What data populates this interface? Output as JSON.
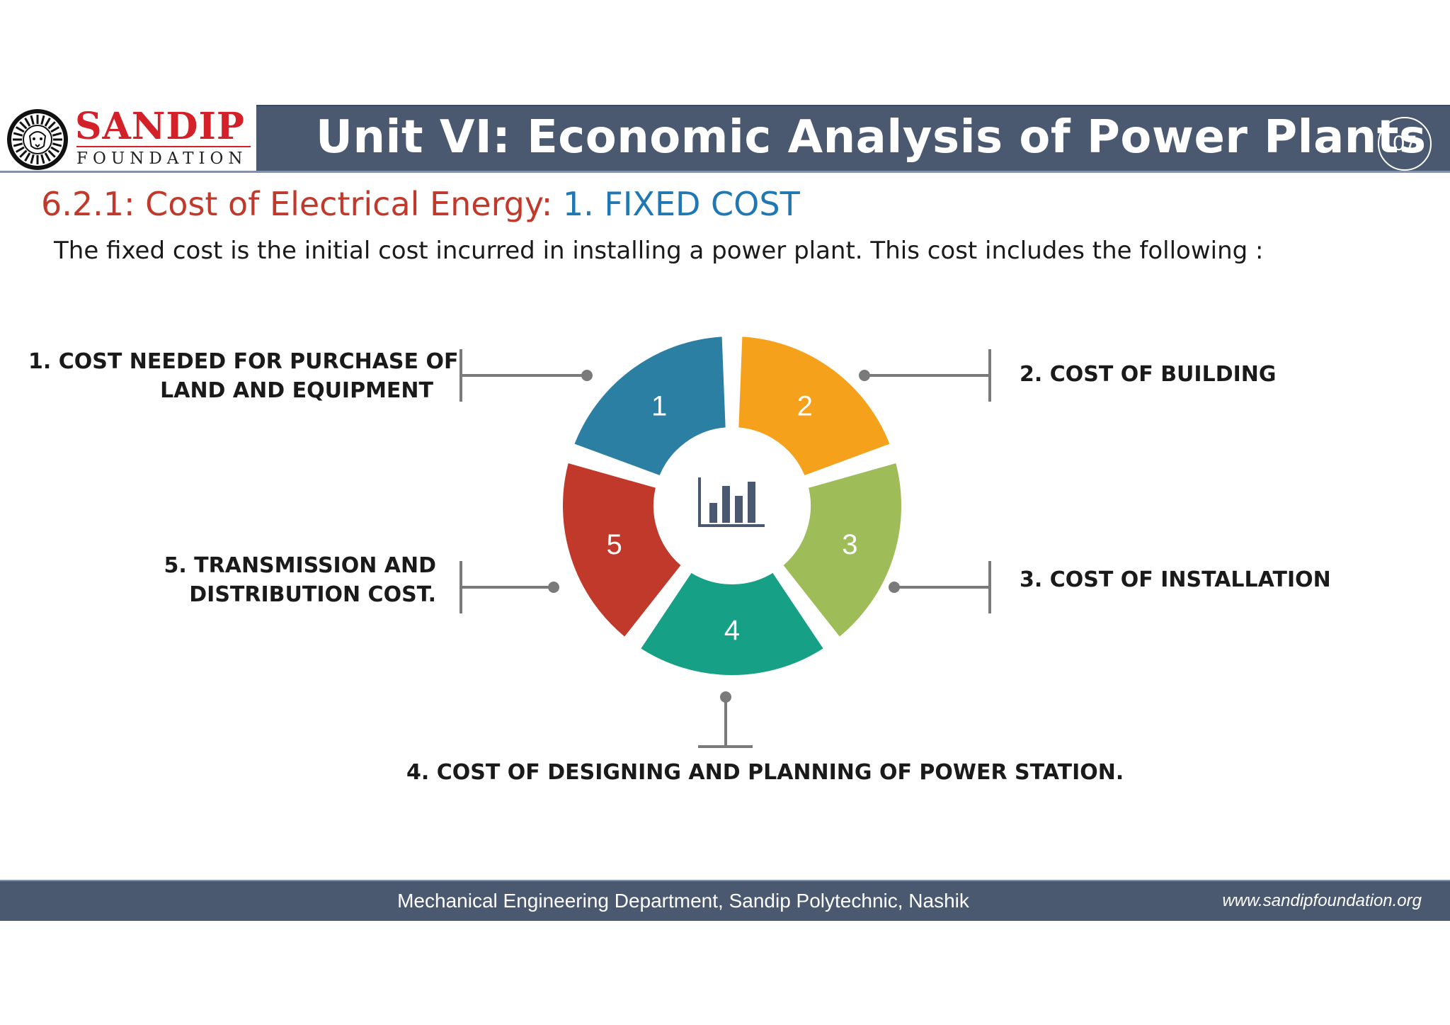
{
  "logo": {
    "name": "SANDIP",
    "subtitle": "FOUNDATION"
  },
  "header": {
    "title": "Unit VI: Economic Analysis of Power Plants",
    "page_number": "07"
  },
  "section": {
    "heading_prefix": "6.2.1: Cost of Electrical Energy:",
    "heading_highlight": "1. FIXED COST",
    "intro": "The fixed cost is the initial cost incurred in installing a power plant. This cost includes the following :"
  },
  "diagram": {
    "center_icon": "bar-chart-icon",
    "segments": [
      {
        "number": "1",
        "color": "#2b7fa3",
        "label_lines": [
          "1. COST NEEDED FOR PURCHASE OF",
          "LAND AND EQUIPMENT"
        ]
      },
      {
        "number": "2",
        "color": "#f5a11b",
        "label_lines": [
          "2. COST OF BUILDING"
        ]
      },
      {
        "number": "3",
        "color": "#9ebc58",
        "label_lines": [
          "3. COST OF INSTALLATION"
        ]
      },
      {
        "number": "4",
        "color": "#16a085",
        "label_lines": [
          "4. COST OF DESIGNING AND PLANNING OF POWER STATION."
        ]
      },
      {
        "number": "5",
        "color": "#c0392b",
        "label_lines": [
          "5. TRANSMISSION AND",
          "DISTRIBUTION COST."
        ]
      }
    ]
  },
  "footer": {
    "department": "Mechanical Engineering Department, Sandip Polytechnic, Nashik",
    "website": "www.sandipfoundation.org"
  },
  "colors": {
    "header_bar": "#4a5870",
    "brand_red": "#d42028",
    "heading_red": "#c0392b",
    "heading_blue": "#1f78b4"
  }
}
